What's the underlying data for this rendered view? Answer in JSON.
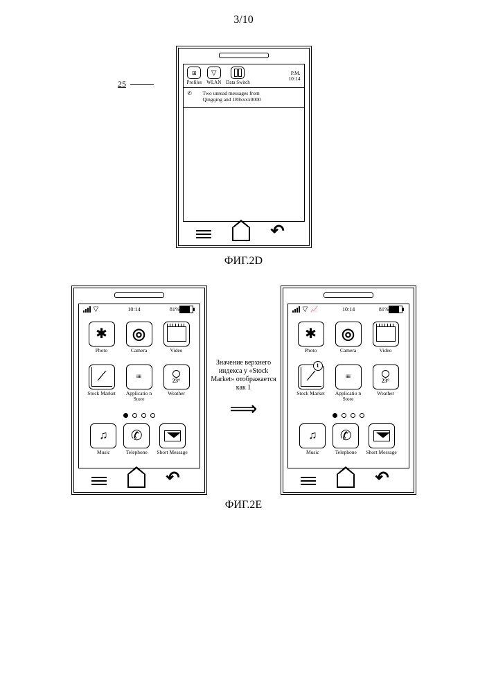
{
  "page_number": "3/10",
  "fig2d": {
    "callout_ref": "25",
    "callout_ref_underline": true,
    "qs": {
      "time_prefix": "P.M.",
      "time_value": "10:14",
      "items": [
        {
          "label": "Profiles"
        },
        {
          "label": "WLAN"
        },
        {
          "label": "Data Switch"
        }
      ]
    },
    "notification": {
      "line1": "Two unread messages from",
      "line2": "Qingqing and 189xxxx0000"
    },
    "label": "ФИГ.2D"
  },
  "fig2e": {
    "label": "ФИГ.2E",
    "arrow_caption": "Значение верхнего индекса у «Stock Market» отображается как 1",
    "status": {
      "time": "10:14",
      "battery_pct": "81%"
    },
    "apps_row1": [
      {
        "name": "photo",
        "label": "Photo"
      },
      {
        "name": "camera",
        "label": "Camera"
      },
      {
        "name": "video",
        "label": "Video"
      }
    ],
    "apps_row2": [
      {
        "name": "stock-market",
        "label": "Stock Market"
      },
      {
        "name": "app-store",
        "label": "Applicatio n Store",
        "icon_text": "iiii"
      },
      {
        "name": "weather",
        "label": "Weather",
        "temp": "23°"
      }
    ],
    "stock_badge_value": "1",
    "dock": [
      {
        "name": "music",
        "label": "Music"
      },
      {
        "name": "telephone",
        "label": "Telephone"
      },
      {
        "name": "short-message",
        "label": "Short Message"
      }
    ],
    "page_dots": {
      "total": 4,
      "active": 0
    }
  }
}
